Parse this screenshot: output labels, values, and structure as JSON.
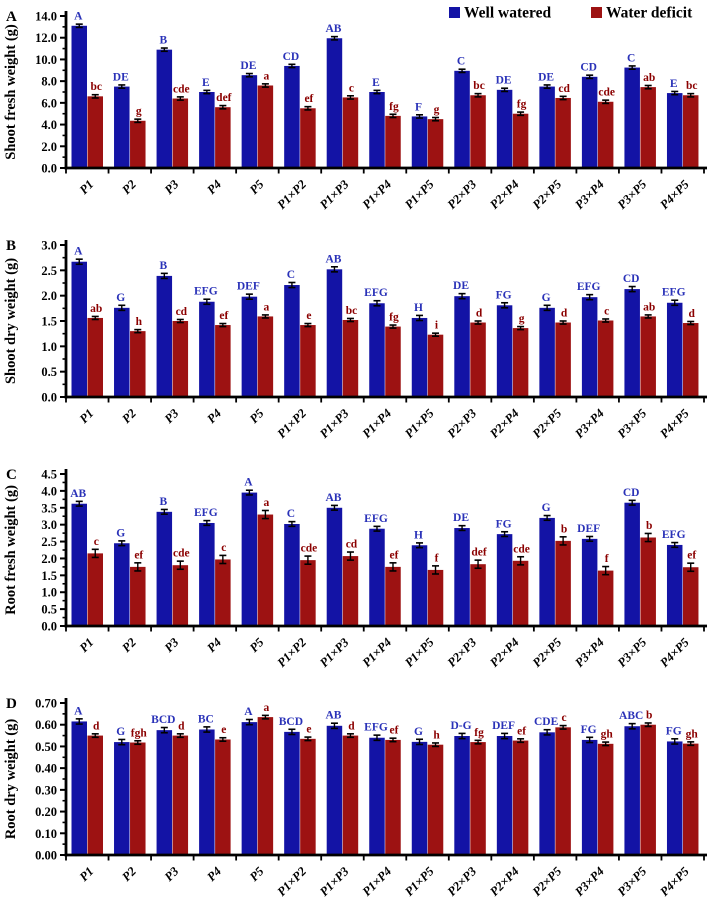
{
  "legend": {
    "items": [
      {
        "label": "Well watered",
        "color": "#1313a5"
      },
      {
        "label": "Water deficit",
        "color": "#9d1212"
      }
    ]
  },
  "chart_data": [
    {
      "type": "bar",
      "panel": "A",
      "ylabel": "Shoot fresh weight (g)",
      "ylim": [
        0,
        14.0
      ],
      "ytick_step": 2.0,
      "tick_decimals": 1,
      "grid": false,
      "legend_position": "top-right-inside",
      "categories": [
        "P1",
        "P2",
        "P3",
        "P4",
        "P5",
        "P1×P2",
        "P1×P3",
        "P1×P4",
        "P1×P5",
        "P2×P3",
        "P2×P4",
        "P2×P5",
        "P3×P4",
        "P3×P5",
        "P4×P5"
      ],
      "series": [
        {
          "name": "Well watered",
          "color": "#1313a5",
          "letter_color": "#2a32b8",
          "err": 0.15,
          "values": [
            13.1,
            7.5,
            10.9,
            7.0,
            8.55,
            9.4,
            11.95,
            7.0,
            4.75,
            8.95,
            7.2,
            7.5,
            8.4,
            9.25,
            6.9
          ],
          "letters": [
            "A",
            "DE",
            "B",
            "E",
            "DE",
            "CD",
            "AB",
            "E",
            "F",
            "C",
            "DE",
            "DE",
            "CD",
            "C",
            "E"
          ]
        },
        {
          "name": "Water deficit",
          "color": "#9d1212",
          "letter_color": "#8b0000",
          "err": 0.15,
          "values": [
            6.6,
            4.35,
            6.4,
            5.6,
            7.6,
            5.5,
            6.5,
            4.8,
            4.5,
            6.7,
            5.0,
            6.45,
            6.1,
            7.45,
            6.7
          ],
          "letters": [
            "bc",
            "g",
            "cde",
            "def",
            "a",
            "ef",
            "c",
            "fg",
            "g",
            "bc",
            "fg",
            "cd",
            "cde",
            "ab",
            "bc"
          ]
        }
      ]
    },
    {
      "type": "bar",
      "panel": "B",
      "ylabel": "Shoot dry weight (g)",
      "ylim": [
        0,
        3.0
      ],
      "ytick_step": 0.5,
      "tick_decimals": 1,
      "grid": false,
      "legend_position": "none",
      "categories": [
        "P1",
        "P2",
        "P3",
        "P4",
        "P5",
        "P1×P2",
        "P1×P3",
        "P1×P4",
        "P1×P5",
        "P2×P3",
        "P2×P4",
        "P2×P5",
        "P3×P4",
        "P3×P5",
        "P4×P5"
      ],
      "series": [
        {
          "name": "Well watered",
          "color": "#1313a5",
          "letter_color": "#2a32b8",
          "err": 0.05,
          "values": [
            2.67,
            1.76,
            2.39,
            1.88,
            1.98,
            2.21,
            2.52,
            1.85,
            1.56,
            1.99,
            1.81,
            1.76,
            1.97,
            2.13,
            1.86
          ],
          "letters": [
            "A",
            "G",
            "B",
            "EFG",
            "DEF",
            "C",
            "AB",
            "EFG",
            "H",
            "DE",
            "FG",
            "G",
            "EFG",
            "CD",
            "EFG"
          ]
        },
        {
          "name": "Water deficit",
          "color": "#9d1212",
          "letter_color": "#8b0000",
          "err": 0.03,
          "values": [
            1.56,
            1.3,
            1.5,
            1.42,
            1.59,
            1.42,
            1.52,
            1.39,
            1.23,
            1.47,
            1.36,
            1.47,
            1.51,
            1.59,
            1.46
          ],
          "letters": [
            "ab",
            "h",
            "cd",
            "ef",
            "a",
            "e",
            "bc",
            "fg",
            "i",
            "d",
            "g",
            "d",
            "c",
            "ab",
            "d"
          ]
        }
      ]
    },
    {
      "type": "bar",
      "panel": "C",
      "ylabel": "Root fresh weight (g)",
      "ylim": [
        0,
        4.5
      ],
      "ytick_step": 0.5,
      "tick_decimals": 1,
      "grid": false,
      "legend_position": "none",
      "categories": [
        "P1",
        "P2",
        "P3",
        "P4",
        "P5",
        "P1×P2",
        "P1×P3",
        "P1×P4",
        "P1×P5",
        "P2×P3",
        "P2×P4",
        "P2×P5",
        "P3×P4",
        "P3×P5",
        "P4×P5"
      ],
      "series": [
        {
          "name": "Well watered",
          "color": "#1313a5",
          "letter_color": "#2a32b8",
          "err": 0.07,
          "values": [
            3.62,
            2.45,
            3.38,
            3.05,
            3.95,
            3.02,
            3.5,
            2.88,
            2.39,
            2.9,
            2.72,
            3.2,
            2.58,
            3.65,
            2.4
          ],
          "letters": [
            "AB",
            "G",
            "B",
            "EFG",
            "A",
            "C",
            "AB",
            "EFG",
            "H",
            "DE",
            "FG",
            "G",
            "DEF",
            "CD",
            "EFG"
          ]
        },
        {
          "name": "Water deficit",
          "color": "#9d1212",
          "letter_color": "#8b0000",
          "err": 0.12,
          "values": [
            2.15,
            1.75,
            1.8,
            1.97,
            3.3,
            1.95,
            2.07,
            1.75,
            1.66,
            1.83,
            1.93,
            2.52,
            1.64,
            2.62,
            1.74
          ],
          "letters": [
            "c",
            "ef",
            "cde",
            "c",
            "a",
            "cde",
            "cd",
            "ef",
            "f",
            "def",
            "cde",
            "b",
            "f",
            "b",
            "ef"
          ]
        }
      ]
    },
    {
      "type": "bar",
      "panel": "D",
      "ylabel": "Root dry weight (g)",
      "ylim": [
        0,
        0.7
      ],
      "ytick_step": 0.1,
      "tick_decimals": 2,
      "grid": false,
      "legend_position": "none",
      "categories": [
        "P1",
        "P2",
        "P3",
        "P4",
        "P5",
        "P1×P2",
        "P1×P3",
        "P1×P4",
        "P1×P5",
        "P2×P3",
        "P2×P4",
        "P2×P5",
        "P3×P4",
        "P3×P5",
        "P4×P5"
      ],
      "series": [
        {
          "name": "Well watered",
          "color": "#1313a5",
          "letter_color": "#2a32b8",
          "err": 0.012,
          "values": [
            0.615,
            0.52,
            0.575,
            0.578,
            0.612,
            0.567,
            0.595,
            0.54,
            0.521,
            0.548,
            0.548,
            0.565,
            0.53,
            0.593,
            0.523
          ],
          "letters": [
            "A",
            "G",
            "BCD",
            "BC",
            "A",
            "BCD",
            "AB",
            "EFG",
            "G",
            "D-G",
            "DEF",
            "CDE",
            "FG",
            "ABC",
            "FG"
          ]
        },
        {
          "name": "Water deficit",
          "color": "#9d1212",
          "letter_color": "#8b0000",
          "err": 0.008,
          "values": [
            0.55,
            0.518,
            0.55,
            0.532,
            0.635,
            0.535,
            0.55,
            0.53,
            0.508,
            0.52,
            0.527,
            0.588,
            0.512,
            0.6,
            0.513
          ],
          "letters": [
            "d",
            "fgh",
            "d",
            "e",
            "a",
            "e",
            "d",
            "ef",
            "h",
            "fg",
            "ef",
            "c",
            "gh",
            "b",
            "gh"
          ]
        }
      ]
    }
  ]
}
